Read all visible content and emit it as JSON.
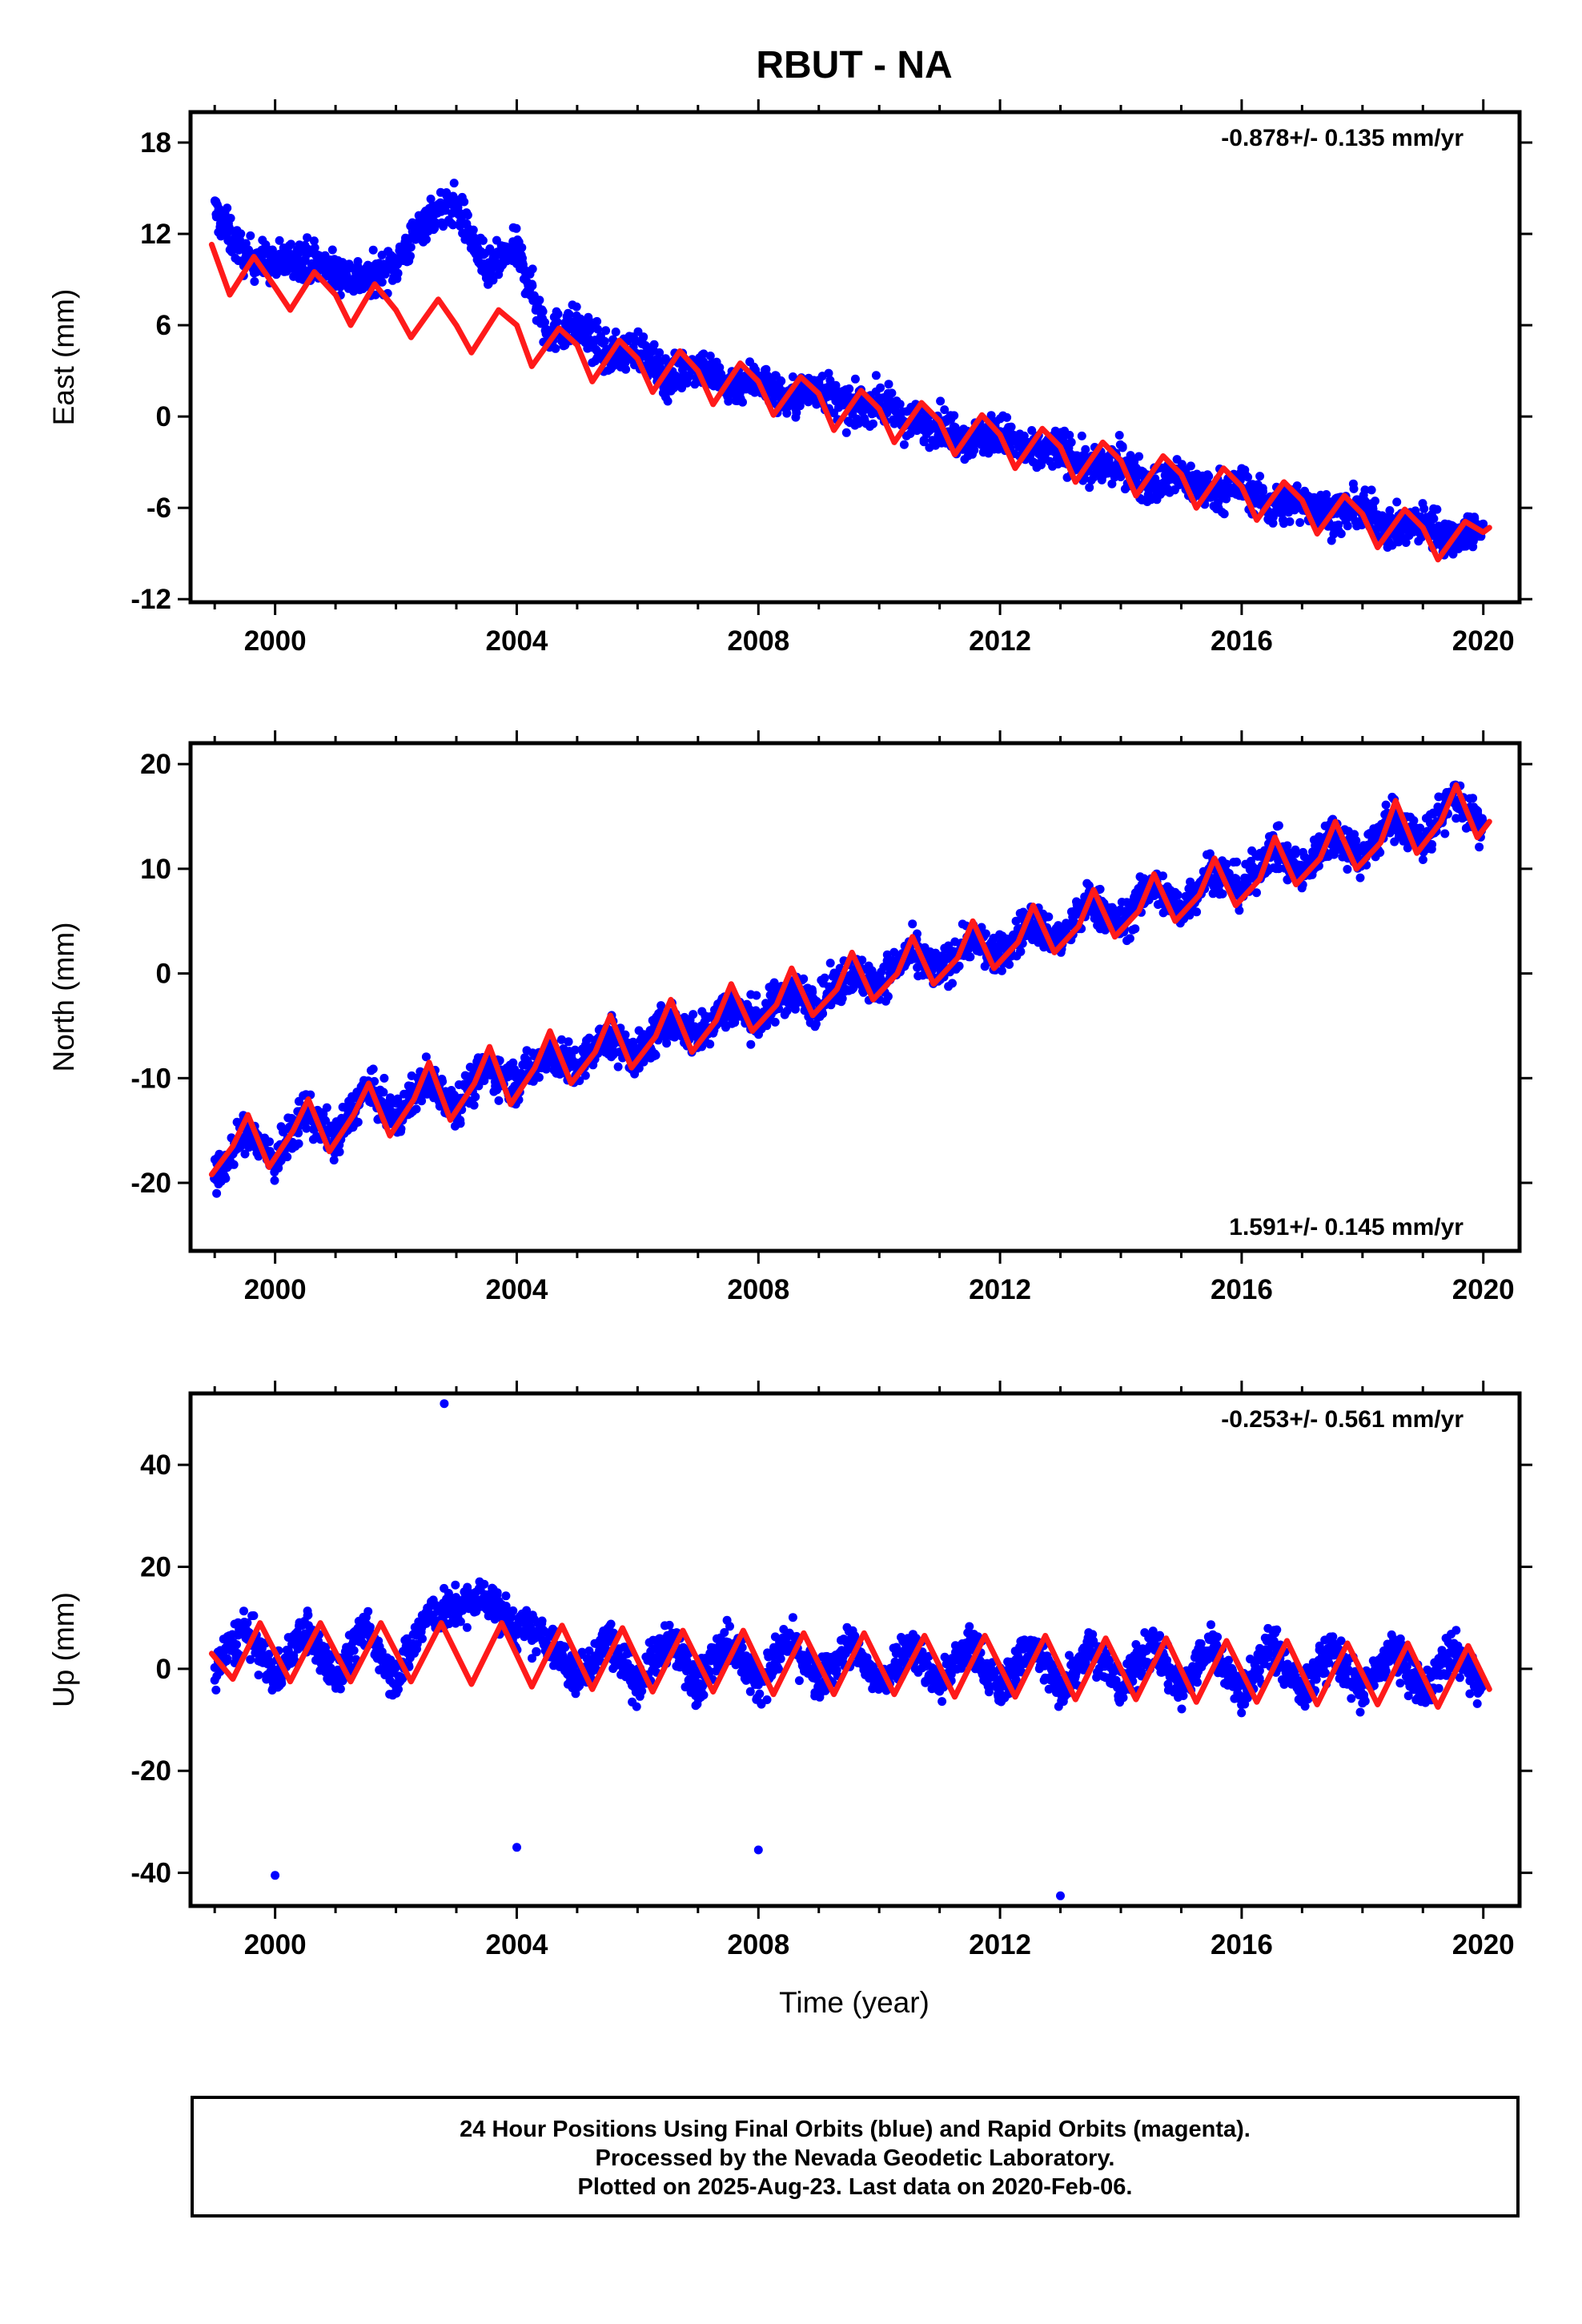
{
  "figure": {
    "title": "RBUT - NA",
    "xlabel": "Time (year)",
    "caption": {
      "line1": "24 Hour Positions Using Final Orbits (blue) and Rapid Orbits (magenta).",
      "line2": "Processed by the Nevada Geodetic Laboratory.",
      "line3": "Plotted on 2025-Aug-23. Last data on 2020-Feb-06."
    },
    "colors": {
      "observations": "#0000ff",
      "model": "#ff1a1a",
      "frame": "#000000"
    }
  },
  "chart_data": [
    {
      "type": "scatter",
      "component": "east",
      "ylabel": "East (mm)",
      "rate_text": "-0.878+/- 0.135 mm/yr",
      "rate_position": "top-right",
      "xlim": [
        1998.6,
        2020.6
      ],
      "ylim": [
        -12.2,
        20
      ],
      "xticks": [
        2000,
        2004,
        2008,
        2012,
        2016,
        2020
      ],
      "yticks": [
        -12,
        -6,
        0,
        6,
        12,
        18
      ],
      "grid": false,
      "series": [
        {
          "style": "points",
          "x": [
            1999.0,
            1999.5,
            2000.0,
            2000.5,
            2001.0,
            2001.5,
            2002.0,
            2002.5,
            2003.0,
            2003.5,
            2004.0,
            2004.5,
            2005.0,
            2005.5,
            2006.0,
            2006.5,
            2007.0,
            2007.5,
            2008.0,
            2008.5,
            2009.0,
            2009.5,
            2010.0,
            2010.5,
            2011.0,
            2011.5,
            2012.0,
            2012.5,
            2013.0,
            2013.5,
            2014.0,
            2014.5,
            2015.0,
            2015.5,
            2016.0,
            2016.5,
            2017.0,
            2017.5,
            2018.0,
            2018.5,
            2019.0,
            2019.5,
            2020.0
          ],
          "y": [
            13.5,
            10.5,
            10.0,
            10.5,
            9.5,
            9.0,
            10.0,
            13.0,
            14.0,
            9.5,
            11.0,
            5.5,
            6.0,
            4.0,
            4.5,
            2.5,
            3.5,
            2.0,
            2.5,
            1.0,
            2.0,
            0.5,
            1.0,
            -0.5,
            -0.5,
            -1.5,
            -1.0,
            -2.5,
            -2.0,
            -3.5,
            -3.0,
            -4.5,
            -4.0,
            -5.0,
            -4.5,
            -6.0,
            -5.5,
            -6.5,
            -6.0,
            -7.5,
            -7.0,
            -8.0,
            -7.0
          ]
        },
        {
          "style": "line",
          "x": [
            1998.95,
            1999.25,
            1999.65,
            2000.0,
            2000.25,
            2000.65,
            2001.0,
            2001.25,
            2001.65,
            2002.0,
            2002.25,
            2002.7,
            2003.0,
            2003.25,
            2003.7,
            2004.0,
            2004.25,
            2004.7,
            2005.0,
            2005.25,
            2005.7,
            2006.0,
            2006.25,
            2006.7,
            2007.0,
            2007.25,
            2007.7,
            2008.0,
            2008.25,
            2008.7,
            2009.0,
            2009.25,
            2009.7,
            2010.0,
            2010.25,
            2010.7,
            2011.0,
            2011.25,
            2011.7,
            2012.0,
            2012.25,
            2012.7,
            2013.0,
            2013.25,
            2013.7,
            2014.0,
            2014.25,
            2014.7,
            2015.0,
            2015.25,
            2015.7,
            2016.0,
            2016.25,
            2016.7,
            2017.0,
            2017.25,
            2017.7,
            2018.0,
            2018.25,
            2018.7,
            2019.0,
            2019.25,
            2019.7,
            2020.0,
            2020.1
          ],
          "y": [
            11.3,
            8.0,
            10.5,
            8.5,
            7.0,
            9.5,
            8.0,
            6.0,
            8.7,
            7.0,
            5.2,
            7.7,
            6.0,
            4.2,
            7.0,
            6.0,
            3.3,
            5.8,
            4.7,
            2.3,
            5.0,
            3.8,
            1.6,
            4.3,
            3.0,
            0.8,
            3.5,
            2.3,
            0.1,
            2.6,
            1.5,
            -0.9,
            1.7,
            0.5,
            -1.7,
            0.9,
            -0.3,
            -2.5,
            0.1,
            -1.2,
            -3.4,
            -0.8,
            -2.0,
            -4.3,
            -1.7,
            -2.9,
            -5.2,
            -2.6,
            -3.8,
            -6.0,
            -3.4,
            -4.6,
            -6.8,
            -4.3,
            -5.5,
            -7.7,
            -5.2,
            -6.4,
            -8.6,
            -6.1,
            -7.3,
            -9.4,
            -6.9,
            -7.6,
            -7.3
          ]
        }
      ]
    },
    {
      "type": "scatter",
      "component": "north",
      "ylabel": "North (mm)",
      "rate_text": "1.591+/- 0.145 mm/yr",
      "rate_position": "bottom-right",
      "xlim": [
        1998.6,
        2020.6
      ],
      "ylim": [
        -26.5,
        22
      ],
      "xticks": [
        2000,
        2004,
        2008,
        2012,
        2016,
        2020
      ],
      "yticks": [
        -20,
        -10,
        0,
        10,
        20
      ],
      "grid": false,
      "series": [
        {
          "style": "points",
          "x": [
            1999.0,
            1999.5,
            2000.0,
            2000.5,
            2001.0,
            2001.5,
            2002.0,
            2002.5,
            2003.0,
            2003.5,
            2004.0,
            2004.5,
            2005.0,
            2005.5,
            2006.0,
            2006.5,
            2007.0,
            2007.5,
            2008.0,
            2008.5,
            2009.0,
            2009.5,
            2010.0,
            2010.5,
            2011.0,
            2011.5,
            2012.0,
            2012.5,
            2013.0,
            2013.5,
            2014.0,
            2014.5,
            2015.0,
            2015.5,
            2016.0,
            2016.5,
            2017.0,
            2017.5,
            2018.0,
            2018.5,
            2019.0,
            2019.5,
            2020.0
          ],
          "y": [
            -20.0,
            -15.0,
            -18.0,
            -13.0,
            -16.0,
            -11.0,
            -14.0,
            -10.0,
            -12.5,
            -9.0,
            -10.5,
            -7.5,
            -9.0,
            -6.0,
            -8.0,
            -4.5,
            -6.0,
            -3.0,
            -4.5,
            -1.5,
            -3.0,
            0.0,
            -1.0,
            2.0,
            0.0,
            3.5,
            1.5,
            5.0,
            3.0,
            7.0,
            4.5,
            8.5,
            6.0,
            10.0,
            8.0,
            12.0,
            9.5,
            13.5,
            11.0,
            15.0,
            12.5,
            17.0,
            13.5
          ]
        },
        {
          "style": "line",
          "x": [
            1998.95,
            1999.3,
            1999.55,
            1999.9,
            2000.3,
            2000.55,
            2000.9,
            2001.3,
            2001.55,
            2001.9,
            2002.3,
            2002.55,
            2002.9,
            2003.3,
            2003.55,
            2003.9,
            2004.3,
            2004.55,
            2004.9,
            2005.3,
            2005.55,
            2005.9,
            2006.3,
            2006.55,
            2006.9,
            2007.3,
            2007.55,
            2007.9,
            2008.3,
            2008.55,
            2008.9,
            2009.3,
            2009.55,
            2009.9,
            2010.3,
            2010.55,
            2010.9,
            2011.3,
            2011.55,
            2011.9,
            2012.3,
            2012.55,
            2012.9,
            2013.3,
            2013.55,
            2013.9,
            2014.3,
            2014.55,
            2014.9,
            2015.3,
            2015.55,
            2015.9,
            2016.3,
            2016.55,
            2016.9,
            2017.3,
            2017.55,
            2017.9,
            2018.3,
            2018.55,
            2018.9,
            2019.3,
            2019.55,
            2019.9,
            2020.1
          ],
          "y": [
            -19.2,
            -16.5,
            -13.5,
            -18.5,
            -15.0,
            -12.0,
            -17.0,
            -13.5,
            -10.5,
            -15.5,
            -12.0,
            -8.5,
            -14.0,
            -10.5,
            -7.0,
            -12.5,
            -9.0,
            -5.5,
            -10.5,
            -7.5,
            -4.0,
            -9.0,
            -6.0,
            -2.5,
            -7.5,
            -4.5,
            -1.0,
            -5.5,
            -3.0,
            0.5,
            -4.0,
            -1.5,
            2.0,
            -2.5,
            0.0,
            3.5,
            -1.0,
            1.5,
            5.0,
            0.5,
            3.0,
            6.5,
            2.0,
            4.5,
            8.0,
            3.5,
            6.0,
            9.5,
            5.0,
            7.5,
            11.0,
            6.5,
            9.0,
            13.0,
            8.5,
            11.0,
            14.5,
            10.0,
            12.5,
            16.5,
            11.5,
            14.5,
            18.0,
            13.0,
            14.5
          ]
        }
      ]
    },
    {
      "type": "scatter",
      "component": "up",
      "ylabel": "Up (mm)",
      "rate_text": "-0.253+/- 0.561 mm/yr",
      "rate_position": "top-right",
      "xlim": [
        1998.6,
        2020.6
      ],
      "ylim": [
        -46.5,
        54
      ],
      "xticks": [
        2000,
        2004,
        2008,
        2012,
        2016,
        2020
      ],
      "yticks": [
        -40,
        -20,
        0,
        20,
        40
      ],
      "grid": false,
      "series": [
        {
          "style": "points",
          "x": [
            1999.0,
            1999.5,
            2000.0,
            2000.5,
            2001.0,
            2001.5,
            2002.0,
            2002.5,
            2003.0,
            2003.5,
            2004.0,
            2004.5,
            2005.0,
            2005.5,
            2006.0,
            2006.5,
            2007.0,
            2007.5,
            2008.0,
            2008.5,
            2009.0,
            2009.5,
            2010.0,
            2010.5,
            2011.0,
            2011.5,
            2012.0,
            2012.5,
            2013.0,
            2013.5,
            2014.0,
            2014.5,
            2015.0,
            2015.5,
            2016.0,
            2016.5,
            2017.0,
            2017.5,
            2018.0,
            2018.5,
            2019.0,
            2019.5,
            2020.0
          ],
          "y": [
            0.0,
            8.0,
            -2.0,
            8.0,
            -2.0,
            8.0,
            -2.0,
            10.0,
            12.0,
            14.0,
            8.0,
            6.0,
            -2.0,
            6.0,
            -3.0,
            6.0,
            -3.0,
            6.0,
            -3.0,
            6.0,
            -3.0,
            5.0,
            -3.0,
            5.0,
            -3.0,
            5.0,
            -4.0,
            5.0,
            -4.0,
            5.0,
            -4.0,
            5.0,
            -4.0,
            5.0,
            -5.0,
            5.0,
            -5.0,
            4.0,
            -5.0,
            4.0,
            -5.0,
            4.0,
            -4.0
          ],
          "outliers_x": [
            2000.0,
            2002.8,
            2004.0,
            2008.0,
            2013.0
          ],
          "outliers_y": [
            -40.5,
            52.0,
            -35.0,
            -35.5,
            -44.5
          ]
        },
        {
          "style": "line",
          "x": [
            1998.95,
            1999.3,
            1999.75,
            2000.25,
            2000.75,
            2001.25,
            2001.75,
            2002.25,
            2002.75,
            2003.25,
            2003.75,
            2004.25,
            2004.75,
            2005.25,
            2005.75,
            2006.25,
            2006.75,
            2007.25,
            2007.75,
            2008.25,
            2008.75,
            2009.25,
            2009.75,
            2010.25,
            2010.75,
            2011.25,
            2011.75,
            2012.25,
            2012.75,
            2013.25,
            2013.75,
            2014.25,
            2014.75,
            2015.25,
            2015.75,
            2016.25,
            2016.75,
            2017.25,
            2017.75,
            2018.25,
            2018.75,
            2019.25,
            2019.75,
            2020.1
          ],
          "y": [
            3.0,
            -2.0,
            9.0,
            -2.5,
            9.0,
            -2.5,
            9.0,
            -2.5,
            9.0,
            -3.0,
            9.0,
            -3.5,
            8.5,
            -4.0,
            8.0,
            -4.5,
            7.5,
            -4.5,
            7.5,
            -5.0,
            7.0,
            -5.0,
            7.0,
            -5.0,
            6.5,
            -5.5,
            6.5,
            -5.5,
            6.5,
            -6.0,
            6.0,
            -6.0,
            6.0,
            -6.5,
            5.5,
            -6.5,
            5.5,
            -7.0,
            5.0,
            -7.0,
            5.0,
            -7.5,
            4.5,
            -4.0
          ]
        }
      ]
    }
  ]
}
